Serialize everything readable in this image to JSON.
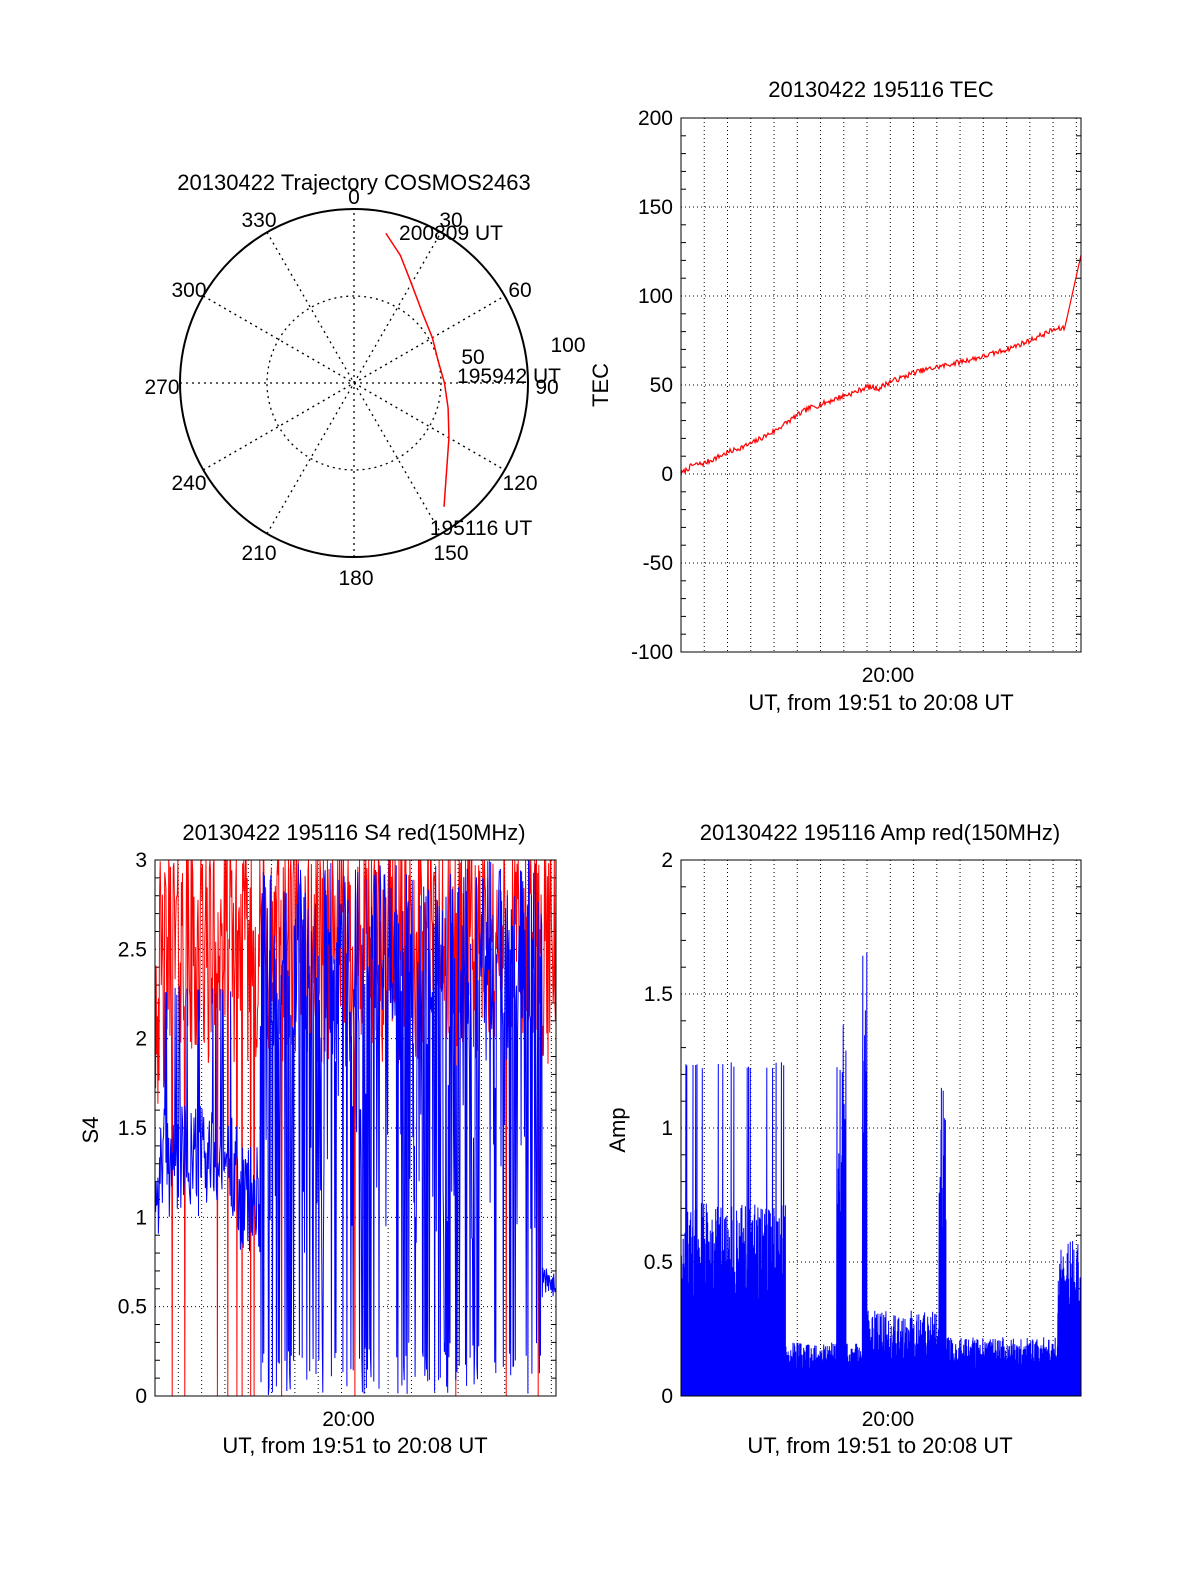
{
  "chart_data": [
    {
      "type": "polar",
      "title": "20130422 Trajectory COSMOS2463",
      "angle_labels": [
        "0",
        "30",
        "60",
        "90",
        "120",
        "150",
        "180",
        "210",
        "240",
        "270",
        "300",
        "330"
      ],
      "radial_labels": [
        "50",
        "100"
      ],
      "rmax": 100,
      "grid": true,
      "series": [
        {
          "color": "#ff0000",
          "points": [
            {
              "az": 12,
              "r": 88
            },
            {
              "az": 20,
              "r": 78
            },
            {
              "az": 30,
              "r": 66
            },
            {
              "az": 45,
              "r": 56
            },
            {
              "az": 60,
              "r": 52
            },
            {
              "az": 75,
              "r": 50
            },
            {
              "az": 90,
              "r": 52
            },
            {
              "az": 105,
              "r": 56
            },
            {
              "az": 120,
              "r": 63
            },
            {
              "az": 135,
              "r": 75
            },
            {
              "az": 144,
              "r": 88
            }
          ]
        }
      ],
      "annotations": [
        {
          "text": "200809 UT",
          "az": 12,
          "r": 88
        },
        {
          "text": "195942 UT",
          "az": 90,
          "r": 52
        },
        {
          "text": "195116 UT",
          "az": 144,
          "r": 88
        }
      ]
    },
    {
      "type": "line",
      "title": "20130422 195116 TEC",
      "ylabel": "TEC",
      "xlabel": "UT, from 19:51 to 20:08 UT",
      "x_tick_labels": [
        "20:00"
      ],
      "yticks": [
        "-100",
        "-50",
        "0",
        "50",
        "100",
        "150",
        "200"
      ],
      "ylim": [
        -100,
        200
      ],
      "x_range_minutes": [
        0,
        17.2
      ],
      "x_tick_minutes": [
        8.9
      ],
      "grid": true,
      "series": [
        {
          "color": "#ff0000",
          "x": [
            0,
            0.5,
            1,
            1.5,
            2,
            3,
            4,
            5,
            5.5,
            6,
            7,
            7.5,
            8,
            8.5,
            9,
            9.5,
            10,
            11,
            12,
            13,
            14,
            15,
            16,
            16.5,
            17.2
          ],
          "y": [
            0,
            5,
            6,
            9,
            12,
            17,
            24,
            33,
            37,
            39,
            44,
            46,
            49,
            48,
            52,
            54,
            57,
            60,
            63,
            66,
            70,
            75,
            81,
            82,
            123
          ]
        }
      ]
    },
    {
      "type": "line",
      "title": "20130422 195116 S4 red(150MHz)",
      "ylabel": "S4",
      "xlabel": "UT, from 19:51 to 20:08 UT",
      "x_tick_labels": [
        "20:00"
      ],
      "yticks": [
        "0",
        "0.5",
        "1",
        "1.5",
        "2",
        "2.5",
        "3"
      ],
      "ylim": [
        0,
        3
      ],
      "x_range_minutes": [
        0,
        17.2
      ],
      "x_tick_minutes": [
        8.3
      ],
      "grid": true,
      "series": [
        {
          "color": "#ff0000"
        },
        {
          "color": "#0000ff"
        }
      ]
    },
    {
      "type": "line",
      "title": "20130422 195116 Amp red(150MHz)",
      "ylabel": "Amp",
      "xlabel": "UT, from 19:51 to 20:08 UT",
      "x_tick_labels": [
        "20:00"
      ],
      "yticks": [
        "0",
        "0.5",
        "1",
        "1.5",
        "2"
      ],
      "ylim": [
        0,
        2
      ],
      "x_range_minutes": [
        0,
        17.2
      ],
      "x_tick_minutes": [
        8.9
      ],
      "grid": true,
      "series": [
        {
          "color": "#ff0000"
        },
        {
          "color": "#0000ff"
        }
      ]
    }
  ]
}
